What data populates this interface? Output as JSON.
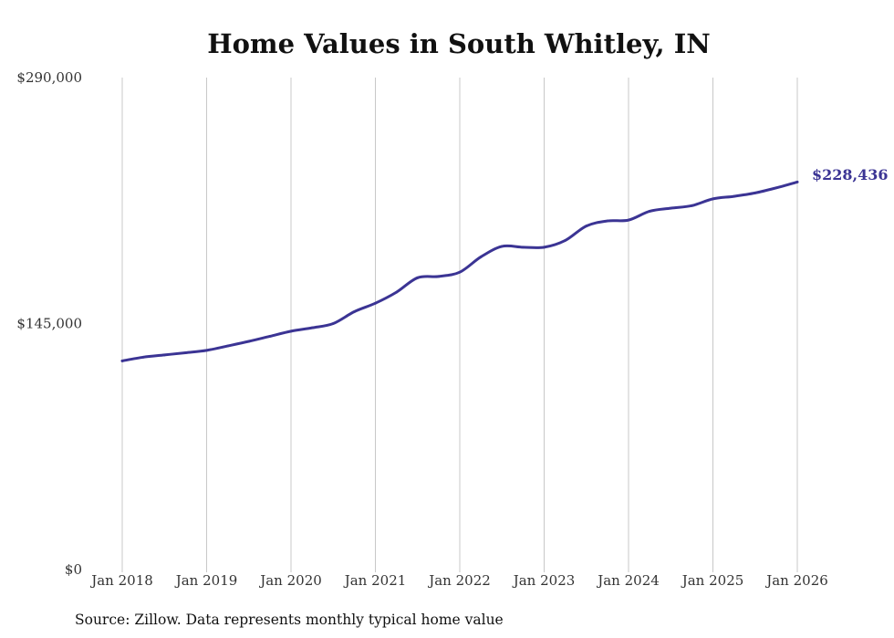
{
  "colors": {
    "line": "#3b3494",
    "grid": "#c8c8c8",
    "text": "#111111"
  },
  "chart_data": {
    "type": "line",
    "title": "Home Values in South Whitley, IN",
    "xlabel": "",
    "ylabel": "",
    "ylim": [
      0,
      290000
    ],
    "y_ticks": [
      0,
      145000,
      290000
    ],
    "y_tick_labels": [
      "$0",
      "$145,000",
      "$290,000"
    ],
    "x_ticks": [
      2018,
      2019,
      2020,
      2021,
      2022,
      2023,
      2024,
      2025,
      2026
    ],
    "x_tick_labels": [
      "Jan 2018",
      "Jan 2019",
      "Jan 2020",
      "Jan 2021",
      "Jan 2022",
      "Jan 2023",
      "Jan 2024",
      "Jan 2025",
      "Jan 2026"
    ],
    "grid": "vertical",
    "series": [
      {
        "name": "Typical home value",
        "x": [
          2018.0,
          2018.25,
          2018.5,
          2018.75,
          2019.0,
          2019.25,
          2019.5,
          2019.75,
          2020.0,
          2020.25,
          2020.5,
          2020.75,
          2021.0,
          2021.25,
          2021.5,
          2021.75,
          2022.0,
          2022.25,
          2022.5,
          2022.75,
          2023.0,
          2023.25,
          2023.5,
          2023.75,
          2024.0,
          2024.25,
          2024.5,
          2024.75,
          2025.0,
          2025.25,
          2025.5,
          2025.75,
          2026.0
        ],
        "values": [
          123000,
          125200,
          126500,
          127800,
          129200,
          131800,
          134500,
          137500,
          140500,
          142500,
          145000,
          152000,
          157000,
          163500,
          172000,
          172800,
          175300,
          184300,
          190500,
          190000,
          190000,
          194000,
          202500,
          205500,
          206000,
          211200,
          213000,
          214500,
          218500,
          220000,
          222000,
          225000,
          228436
        ]
      }
    ],
    "end_label": "$228,436",
    "source": "Source: Zillow. Data represents monthly typical home value"
  }
}
